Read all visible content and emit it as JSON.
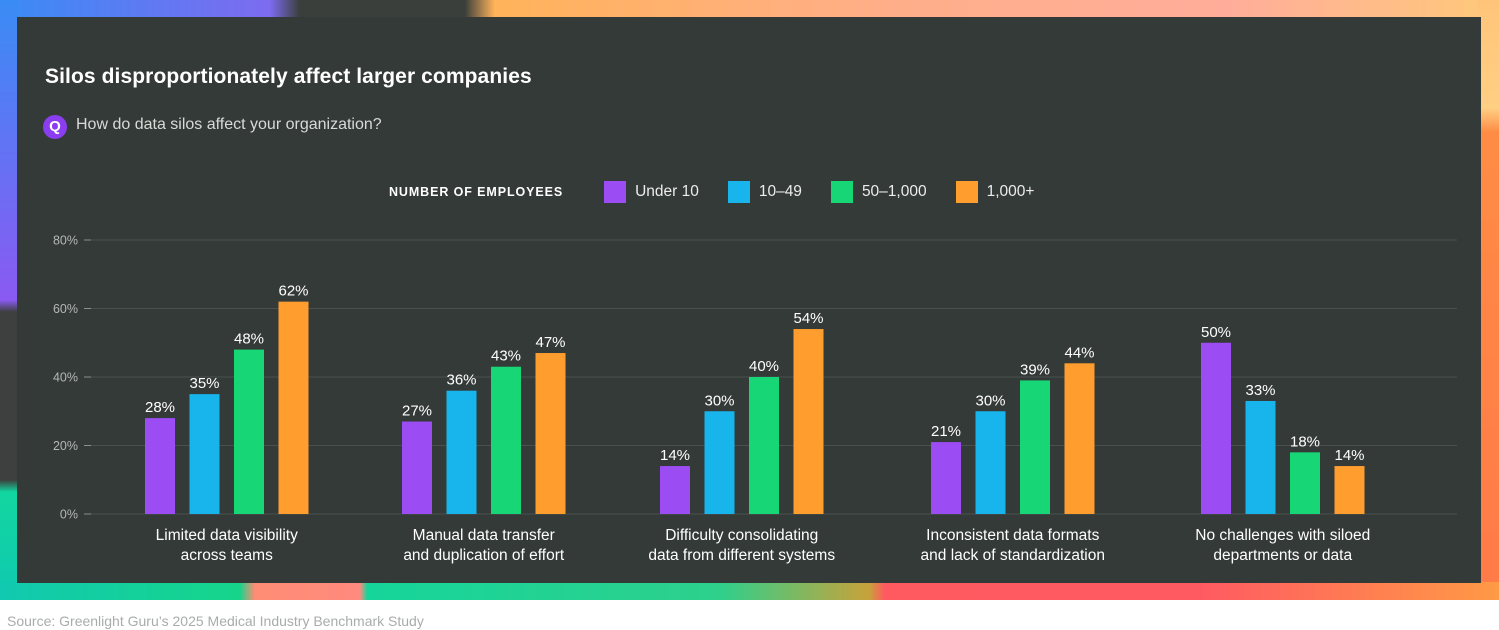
{
  "header": {
    "title": "Silos disproportionately affect larger companies",
    "question_badge": "Q",
    "question": "How do data silos affect your organization?"
  },
  "legend": {
    "title": "NUMBER OF EMPLOYEES"
  },
  "colors": {
    "background_panel": "#343a38",
    "series": [
      "#9b4cf2",
      "#18b4ec",
      "#17d676",
      "#ff9d2e"
    ]
  },
  "chart_data": {
    "type": "bar",
    "title": "Silos disproportionately affect larger companies",
    "subtitle": "How do data silos affect your organization?",
    "xlabel": "",
    "ylabel": "",
    "ylim": [
      0,
      80
    ],
    "yticks": [
      0,
      20,
      40,
      60,
      80
    ],
    "ytick_labels": [
      "0%",
      "20%",
      "40%",
      "60%",
      "80%"
    ],
    "grid": true,
    "legend_title": "NUMBER OF EMPLOYEES",
    "legend_position": "top-center",
    "categories": [
      [
        "Limited data visibility",
        "across teams"
      ],
      [
        "Manual data transfer",
        "and duplication of effort"
      ],
      [
        "Difficulty consolidating",
        "data from different systems"
      ],
      [
        "Inconsistent data formats",
        "and lack of standardization"
      ],
      [
        "No challenges with siloed",
        "departments or data"
      ]
    ],
    "series": [
      {
        "name": "Under 10",
        "values": [
          28,
          27,
          14,
          21,
          50
        ]
      },
      {
        "name": "10–49",
        "values": [
          35,
          36,
          30,
          30,
          33
        ]
      },
      {
        "name": "50–1,000",
        "values": [
          48,
          43,
          40,
          39,
          18
        ]
      },
      {
        "name": "1,000+",
        "values": [
          62,
          47,
          54,
          44,
          14
        ]
      }
    ],
    "value_suffix": "%"
  },
  "footer": {
    "source": "Source: Greenlight Guru’s 2025 Medical Industry Benchmark Study"
  }
}
